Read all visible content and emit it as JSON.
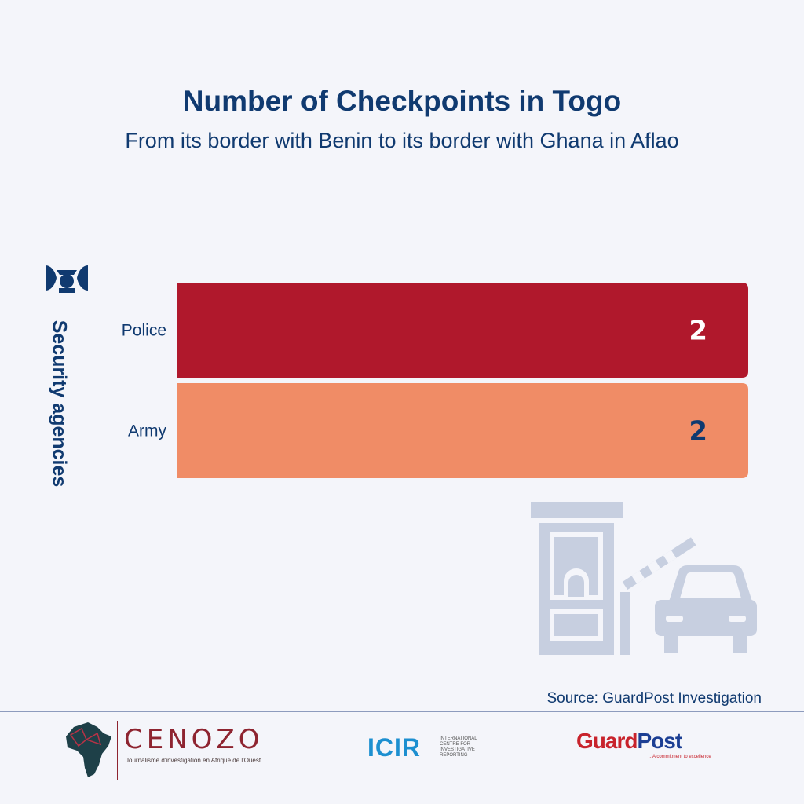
{
  "chart_data": {
    "type": "bar",
    "orientation": "horizontal",
    "title": "Number of Checkpoints in Togo",
    "subtitle": "From its border with Benin to its border with Ghana in Aflao",
    "ylabel": "Security agencies",
    "xlabel": "",
    "categories": [
      "Police",
      "Army"
    ],
    "values": [
      2,
      2
    ],
    "xlim": [
      0,
      2
    ],
    "grid": false,
    "bar_colors": [
      "#b0182c",
      "#f08c66"
    ],
    "label_colors": [
      "#ffffff",
      "#103a70"
    ]
  },
  "source": "Source: GuardPost Investigation",
  "logos": {
    "cenozo": {
      "name": "CENOZO",
      "tagline": "Journalisme d'investigation en Afrique de l'Ouest"
    },
    "icir": {
      "name": "ICIR",
      "tagline": "INTERNATIONAL CENTRE FOR INVESTIGATIVE REPORTING"
    },
    "guardpost": {
      "name_red": "Guard",
      "name_blue": "Post",
      "tagline": "...A commitment to excellence"
    }
  },
  "icons": [
    "police-officer-icon",
    "checkpoint-booth-icon",
    "barrier-gate-icon",
    "car-icon"
  ],
  "colors": {
    "title": "#103a70",
    "background": "#f4f5fa",
    "illustration": "#c7cfe0"
  }
}
